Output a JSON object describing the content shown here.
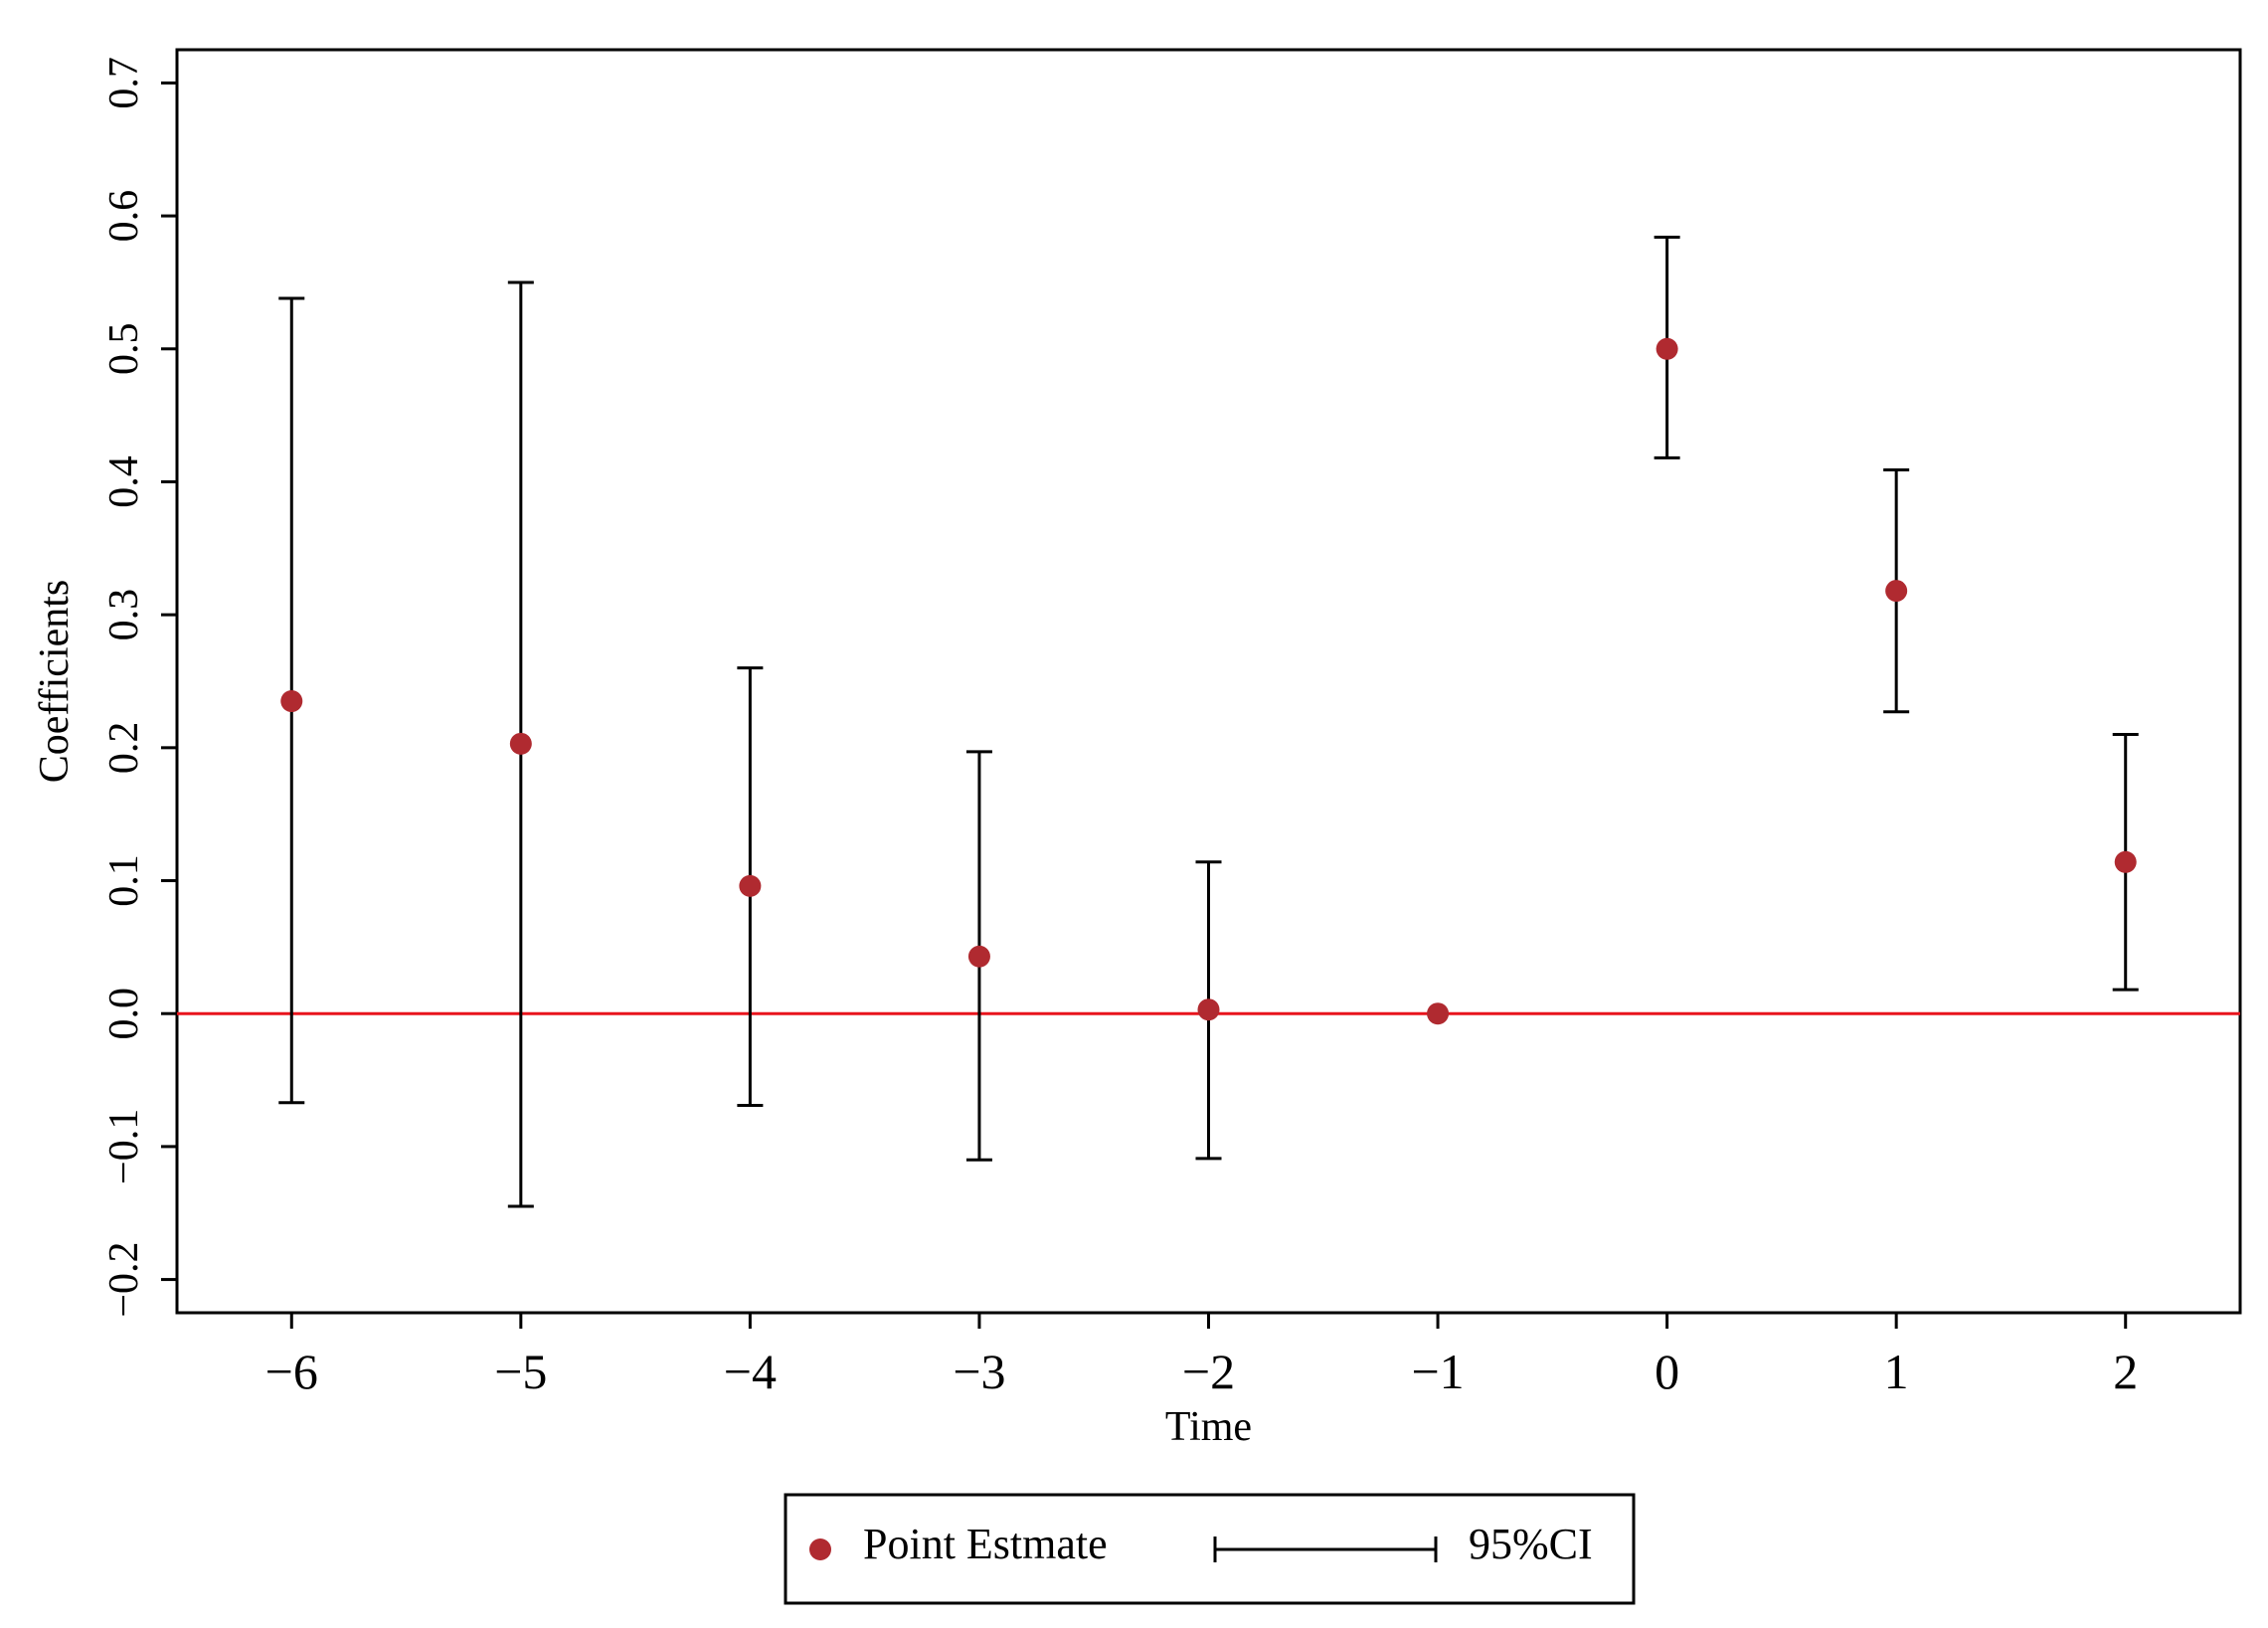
{
  "chart_data": {
    "type": "scatter",
    "xlabel": "Time",
    "ylabel": "Coefficients",
    "xlim": [
      -6.5,
      2.5
    ],
    "ylim": [
      -0.225,
      0.725
    ],
    "x_ticks": [
      -6,
      -5,
      -4,
      -3,
      -2,
      -1,
      0,
      1,
      2
    ],
    "x_tick_labels": [
      "−6",
      "−5",
      "−4",
      "−3",
      "−2",
      "−1",
      "0",
      "1",
      "2"
    ],
    "y_ticks": [
      -0.2,
      -0.1,
      0.0,
      0.1,
      0.2,
      0.3,
      0.4,
      0.5,
      0.6,
      0.7
    ],
    "y_tick_labels": [
      "−0.2",
      "−0.1",
      "0.0",
      "0.1",
      "0.2",
      "0.3",
      "0.4",
      "0.5",
      "0.6",
      "0.7"
    ],
    "grid": false,
    "reference_line": {
      "y": 0,
      "color": "#e8141c"
    },
    "series": [
      {
        "name": "Point Estmate",
        "color": "#b02a30",
        "x": [
          -6,
          -5,
          -4,
          -3,
          -2,
          -1,
          0,
          1,
          2
        ],
        "y": [
          0.235,
          0.203,
          0.096,
          0.043,
          0.003,
          0.0,
          0.5,
          0.318,
          0.114
        ],
        "ci_lower": [
          -0.067,
          -0.145,
          -0.069,
          -0.11,
          -0.109,
          null,
          0.418,
          0.227,
          0.018
        ],
        "ci_upper": [
          0.538,
          0.55,
          0.26,
          0.197,
          0.114,
          null,
          0.584,
          0.409,
          0.21
        ]
      }
    ],
    "legend": {
      "placement": "bottom-center",
      "entries": [
        {
          "label": "Point Estmate",
          "marker": "dot",
          "color": "#b02a30"
        },
        {
          "label": "95%CI",
          "marker": "errorbar",
          "color": "#000000"
        }
      ]
    }
  }
}
